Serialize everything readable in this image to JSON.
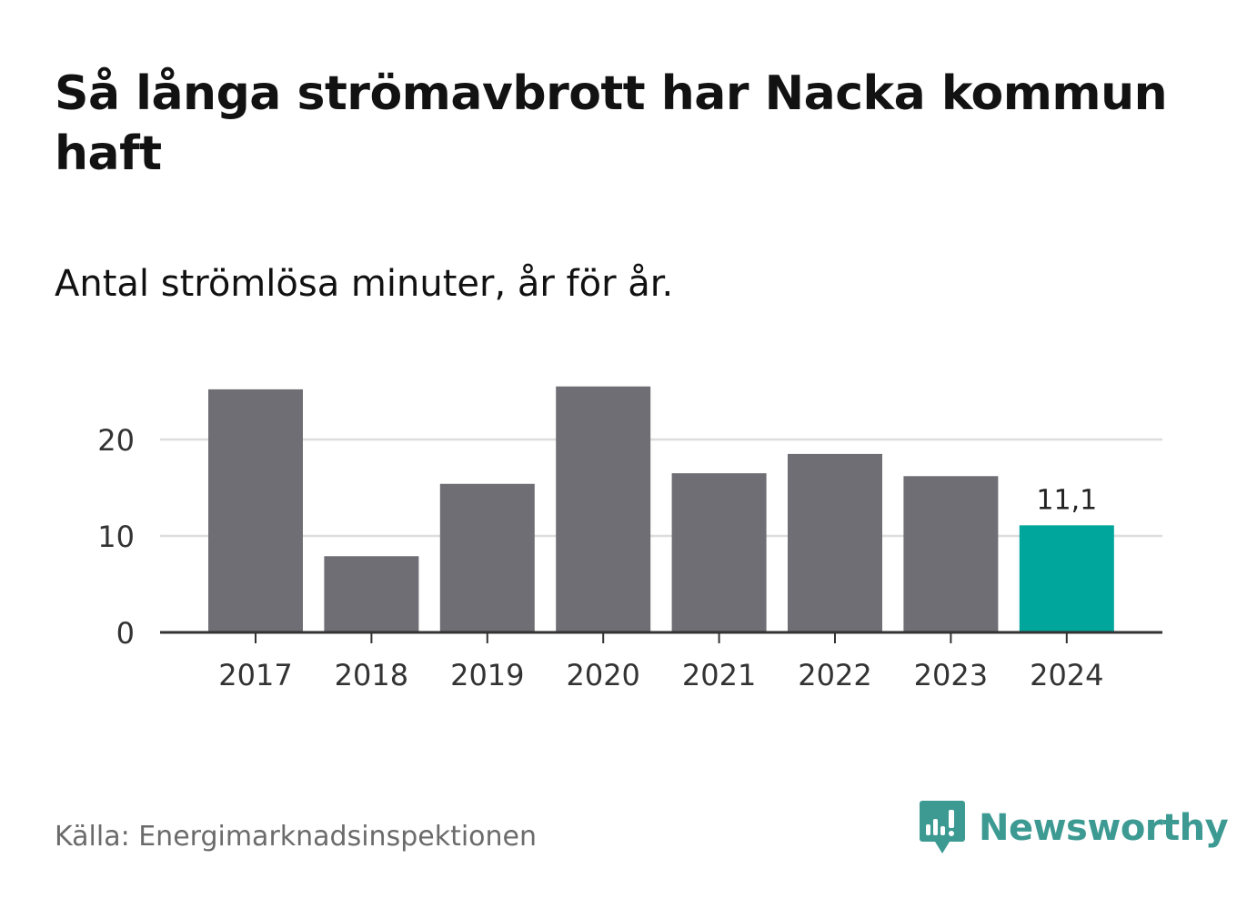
{
  "title": "Så långa strömavbrott har Nacka kommun haft",
  "subtitle": "Antal strömlösa minuter, år för år.",
  "source": "Källa: Energimarknadsinspektionen",
  "brand": "Newsworthy",
  "colors": {
    "bar": "#6f6e74",
    "highlight": "#00a59b",
    "grid": "#dddddd",
    "axis": "#333333",
    "brand": "#3c9a93"
  },
  "chart_data": {
    "type": "bar",
    "categories": [
      "2017",
      "2018",
      "2019",
      "2020",
      "2021",
      "2022",
      "2023",
      "2024"
    ],
    "values": [
      25.2,
      7.9,
      15.4,
      25.5,
      16.5,
      18.5,
      16.2,
      11.1
    ],
    "highlight_index": 7,
    "data_labels": [
      {
        "category": "2024",
        "text": "11,1"
      }
    ],
    "y_ticks": [
      "0",
      "10",
      "20"
    ],
    "ylim": [
      0,
      25.5
    ],
    "grid": true
  }
}
